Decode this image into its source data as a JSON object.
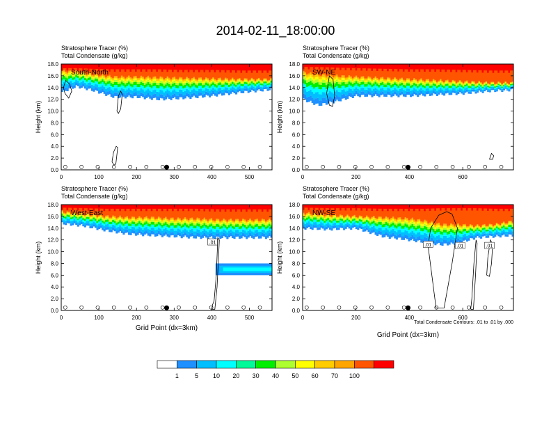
{
  "title": "2014-02-11_18:00:00",
  "chart_data": [
    {
      "type": "heatmap",
      "subtitle_lines": [
        "Stratosphere Tracer   (%)",
        "Total Condensate   (g/kg)"
      ],
      "panel_label": "South-North",
      "ylabel": "Height (km)",
      "xlabel": "",
      "ylim": [
        0,
        18
      ],
      "yticks": [
        "0.0",
        "2.0",
        "4.0",
        "6.0",
        "8.0",
        "10.0",
        "12.0",
        "14.0",
        "16.0",
        "18.0"
      ],
      "xlim": [
        0,
        560
      ],
      "xticks": [
        0,
        100,
        200,
        300,
        400,
        500
      ],
      "marker_x": 280,
      "tracer_layer": {
        "profile": [
          [
            0,
            13.2,
            16.8,
            17.4
          ],
          [
            40,
            14.2,
            16.7,
            17.4
          ],
          [
            80,
            13.6,
            16.3,
            17.3
          ],
          [
            140,
            12.4,
            15.8,
            17.2
          ],
          [
            200,
            12.4,
            15.8,
            17.2
          ],
          [
            260,
            12.0,
            15.7,
            17.2
          ],
          [
            320,
            12.2,
            15.6,
            17.1
          ],
          [
            400,
            12.6,
            15.5,
            17.1
          ],
          [
            480,
            13.2,
            15.4,
            17.0
          ],
          [
            560,
            13.7,
            15.4,
            17.0
          ]
        ],
        "high_tracer_top": 18.0
      },
      "contours": [
        {
          "x": [
            10,
            20,
            28,
            22,
            12,
            6,
            10
          ],
          "y": [
            13.0,
            12.2,
            13.4,
            14.6,
            15.2,
            14.0,
            13.0
          ]
        },
        {
          "x": [
            148,
            152,
            158,
            162,
            158,
            152,
            148
          ],
          "y": [
            10.0,
            9.6,
            10.4,
            12.8,
            13.4,
            12.6,
            10.0
          ]
        },
        {
          "x": [
            135,
            140,
            145,
            150,
            146,
            139,
            135
          ],
          "y": [
            1.4,
            0.8,
            1.0,
            3.8,
            4.0,
            3.0,
            1.4
          ]
        }
      ],
      "contour_labels": []
    },
    {
      "type": "heatmap",
      "subtitle_lines": [
        "Stratosphere Tracer   (%)",
        "Total Condensate   (g/kg)"
      ],
      "panel_label": "SW-NE",
      "ylabel": "Height (km)",
      "xlabel": "",
      "ylim": [
        0,
        18
      ],
      "yticks": [
        "0.0",
        "2.0",
        "4.0",
        "6.0",
        "8.0",
        "10.0",
        "12.0",
        "14.0",
        "16.0",
        "18.0"
      ],
      "xlim": [
        0,
        790
      ],
      "xticks": [
        0,
        200,
        400,
        600
      ],
      "marker_x": 395,
      "tracer_layer": {
        "profile": [
          [
            0,
            12.0,
            16.6,
            17.6
          ],
          [
            60,
            11.0,
            16.2,
            17.6
          ],
          [
            120,
            11.6,
            16.0,
            17.5
          ],
          [
            200,
            12.6,
            15.8,
            17.4
          ],
          [
            300,
            12.6,
            15.6,
            17.3
          ],
          [
            400,
            12.6,
            15.4,
            17.2
          ],
          [
            500,
            12.8,
            15.2,
            17.2
          ],
          [
            600,
            13.0,
            15.0,
            17.1
          ],
          [
            700,
            13.4,
            14.8,
            17.0
          ],
          [
            790,
            13.6,
            14.8,
            17.0
          ]
        ],
        "high_tracer_top": 18.0
      },
      "contours": [
        {
          "x": [
            90,
            100,
            112,
            120,
            114,
            100,
            90
          ],
          "y": [
            13.0,
            11.0,
            10.8,
            12.6,
            15.4,
            16.0,
            13.0
          ]
        },
        {
          "x": [
            700,
            712,
            716,
            708,
            700
          ],
          "y": [
            1.8,
            1.8,
            2.4,
            2.8,
            1.8
          ]
        }
      ],
      "contour_labels": []
    },
    {
      "type": "heatmap",
      "subtitle_lines": [
        "Stratosphere Tracer   (%)",
        "Total Condensate   (g/kg)"
      ],
      "panel_label": "West-East",
      "ylabel": "Height (km)",
      "xlabel": "Grid Point (dx=3km)",
      "ylim": [
        0,
        18
      ],
      "yticks": [
        "0.0",
        "2.0",
        "4.0",
        "6.0",
        "8.0",
        "10.0",
        "12.0",
        "14.0",
        "16.0",
        "18.0"
      ],
      "xlim": [
        0,
        560
      ],
      "xticks": [
        0,
        100,
        200,
        300,
        400,
        500
      ],
      "marker_x": 280,
      "tracer_layer": {
        "profile": [
          [
            0,
            14.8,
            16.8,
            17.6
          ],
          [
            60,
            14.4,
            16.4,
            17.5
          ],
          [
            120,
            13.6,
            16.0,
            17.4
          ],
          [
            180,
            13.0,
            15.8,
            17.4
          ],
          [
            240,
            12.8,
            15.8,
            17.4
          ],
          [
            300,
            12.6,
            15.6,
            17.4
          ],
          [
            360,
            12.4,
            15.6,
            17.4
          ],
          [
            420,
            12.4,
            15.4,
            17.3
          ],
          [
            480,
            12.4,
            15.4,
            17.3
          ],
          [
            560,
            12.4,
            15.4,
            17.3
          ]
        ],
        "high_tracer_top": 18.0
      },
      "extra_bands": [
        {
          "x0": 410,
          "x1": 560,
          "y0": 6.0,
          "y1": 8.0,
          "level": 3
        }
      ],
      "contours": [
        {
          "x": [
            400,
            408,
            414,
            420,
            416,
            412,
            406,
            402,
            400
          ],
          "y": [
            0.2,
            0.2,
            4.0,
            12.0,
            12.4,
            6.0,
            1.6,
            1.0,
            0.2
          ]
        }
      ],
      "contour_labels": [
        {
          "x": 402,
          "y": 11.6,
          "text": ".01"
        }
      ]
    },
    {
      "type": "heatmap",
      "subtitle_lines": [
        "Stratosphere Tracer   (%)",
        "Total Condensate   (g/kg)"
      ],
      "panel_label": "NW-SE",
      "ylabel": "Height (km)",
      "xlabel": "Grid Point (dx=3km)",
      "ylim": [
        0,
        18
      ],
      "yticks": [
        "0.0",
        "2.0",
        "4.0",
        "6.0",
        "8.0",
        "10.0",
        "12.0",
        "14.0",
        "16.0",
        "18.0"
      ],
      "xlim": [
        0,
        790
      ],
      "xticks": [
        0,
        200,
        400,
        600
      ],
      "marker_x": 395,
      "tracer_layer": {
        "profile": [
          [
            0,
            14.0,
            16.6,
            17.6
          ],
          [
            100,
            13.8,
            16.2,
            17.5
          ],
          [
            200,
            14.0,
            16.0,
            17.5
          ],
          [
            300,
            12.6,
            15.8,
            17.4
          ],
          [
            400,
            12.0,
            15.6,
            17.4
          ],
          [
            460,
            11.6,
            15.2,
            17.4
          ],
          [
            520,
            11.2,
            14.6,
            17.5
          ],
          [
            580,
            11.4,
            14.6,
            17.5
          ],
          [
            650,
            12.4,
            14.4,
            17.5
          ],
          [
            720,
            12.6,
            14.6,
            17.4
          ],
          [
            790,
            12.8,
            15.2,
            17.4
          ]
        ],
        "high_tracer_top": 18.0
      },
      "contours": [
        {
          "x": [
            470,
            500,
            530,
            560,
            580,
            560,
            540,
            510,
            480,
            470
          ],
          "y": [
            11.0,
            0.4,
            0.4,
            8.0,
            14.0,
            16.4,
            16.8,
            16.2,
            14.0,
            11.0
          ]
        },
        {
          "x": [
            630,
            640,
            648,
            654,
            650,
            642,
            634,
            630
          ],
          "y": [
            0.2,
            0.2,
            6.0,
            11.4,
            12.0,
            8.0,
            2.0,
            0.2
          ]
        },
        {
          "x": [
            690,
            700,
            708,
            712,
            704,
            694,
            690
          ],
          "y": [
            6.0,
            5.8,
            8.0,
            11.2,
            12.0,
            9.0,
            6.0
          ]
        }
      ],
      "contour_labels": [
        {
          "x": 470,
          "y": 11.2,
          "text": ".01"
        },
        {
          "x": 590,
          "y": 11.0,
          "text": ".01"
        },
        {
          "x": 700,
          "y": 11.0,
          "text": ".01"
        }
      ],
      "footnote": "Total Condensate Contours: .01 to .01 by .000"
    }
  ],
  "colorbar": {
    "labels": [
      "1",
      "5",
      "10",
      "20",
      "30",
      "40",
      "50",
      "60",
      "70",
      "100"
    ],
    "colors": [
      "#ffffff",
      "#1e90ff",
      "#00bfff",
      "#00ffff",
      "#00fa9a",
      "#00ee00",
      "#adff2f",
      "#ffff00",
      "#ffcc00",
      "#ffa500",
      "#ff5500",
      "#ff0000"
    ]
  }
}
